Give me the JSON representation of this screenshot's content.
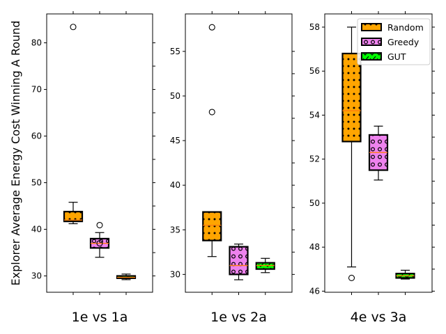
{
  "chart_data": {
    "type": "boxplot",
    "ylabel": "Explorer Average Energy Cost Winning A Round",
    "legend": {
      "position": "top-right",
      "entries": [
        {
          "name": "Random",
          "color": "#ffa500",
          "hatch": "dots"
        },
        {
          "name": "Greedy",
          "color": "#ee82ee",
          "hatch": "circles"
        },
        {
          "name": "GUT",
          "color": "#00ff00",
          "hatch": "checks"
        }
      ]
    },
    "panels": [
      {
        "xlabel": "1e vs 1a",
        "ylim": [
          26.5,
          86.2
        ],
        "yticks": [
          30,
          40,
          50,
          60,
          70,
          80
        ],
        "boxes": [
          {
            "series": "Random",
            "whisker_low": 41.2,
            "q1": 41.7,
            "median": 42.0,
            "q3": 43.8,
            "whisker_high": 45.8,
            "outliers": [
              83.4
            ]
          },
          {
            "series": "Greedy",
            "whisker_low": 34.0,
            "q1": 36.0,
            "median": 37.0,
            "q3": 38.0,
            "whisker_high": 39.3,
            "outliers": [
              40.9,
              37.0
            ]
          },
          {
            "series": "GUT",
            "whisker_low": 29.2,
            "q1": 29.5,
            "median": 29.7,
            "q3": 30.0,
            "whisker_high": 30.4,
            "outliers": []
          }
        ]
      },
      {
        "xlabel": "1e vs 2a",
        "ylim": [
          28.0,
          59.2
        ],
        "yticks": [
          30,
          35,
          40,
          45,
          50,
          55
        ],
        "boxes": [
          {
            "series": "Random",
            "whisker_low": 32.0,
            "q1": 33.8,
            "median": 35.5,
            "q3": 37.0,
            "whisker_high": 37.0,
            "outliers": [
              57.7,
              48.2
            ]
          },
          {
            "series": "Greedy",
            "whisker_low": 29.4,
            "q1": 30.0,
            "median": 31.0,
            "q3": 33.1,
            "whisker_high": 33.4,
            "outliers": []
          },
          {
            "series": "GUT",
            "whisker_low": 30.2,
            "q1": 30.6,
            "median": 31.0,
            "q3": 31.3,
            "whisker_high": 31.8,
            "outliers": []
          }
        ]
      },
      {
        "xlabel": "4e vs 3a",
        "ylim": [
          45.95,
          58.6
        ],
        "yticks": [
          46,
          48,
          50,
          52,
          54,
          56,
          58
        ],
        "boxes": [
          {
            "series": "Random",
            "whisker_low": 47.1,
            "q1": 52.8,
            "median": 54.2,
            "q3": 56.8,
            "whisker_high": 58.0,
            "outliers": [
              46.6
            ]
          },
          {
            "series": "Greedy",
            "whisker_low": 51.05,
            "q1": 51.5,
            "median": 52.3,
            "q3": 53.1,
            "whisker_high": 53.5,
            "outliers": []
          },
          {
            "series": "GUT",
            "whisker_low": 46.55,
            "q1": 46.6,
            "median": 46.7,
            "q3": 46.8,
            "whisker_high": 46.95,
            "outliers": []
          }
        ]
      }
    ]
  }
}
